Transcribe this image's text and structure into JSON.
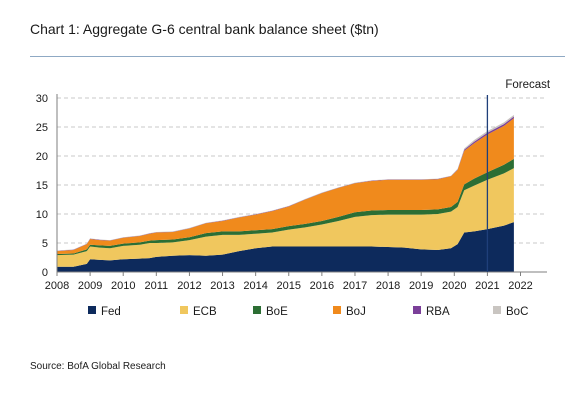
{
  "header": {
    "title": "Chart 1: Aggregate G-6 central bank balance sheet ($tn)"
  },
  "footer": {
    "source": "Source: BofA Global Research"
  },
  "chart_data": {
    "type": "area",
    "stacked": true,
    "title": "Chart 1: Aggregate G-6 central bank balance sheet ($tn)",
    "xlabel": "",
    "ylabel": "",
    "xlim": [
      2008,
      2022.8
    ],
    "ylim": [
      0,
      30
    ],
    "x_ticks": [
      "2008",
      "2009",
      "2010",
      "2011",
      "2012",
      "2013",
      "2014",
      "2015",
      "2016",
      "2017",
      "2018",
      "2019",
      "2020",
      "2021",
      "2022"
    ],
    "y_ticks": [
      "0",
      "5",
      "10",
      "15",
      "20",
      "25",
      "30"
    ],
    "grid": "horizontal dashed",
    "legend_position": "bottom",
    "annotation": {
      "label": "Forecast",
      "x": 2021
    },
    "x": [
      2008.0,
      2008.5,
      2008.9,
      2009.0,
      2009.3,
      2009.6,
      2010.0,
      2010.5,
      2010.8,
      2011.0,
      2011.5,
      2012.0,
      2012.5,
      2013.0,
      2013.5,
      2014.0,
      2014.5,
      2015.0,
      2015.5,
      2016.0,
      2016.5,
      2017.0,
      2017.5,
      2018.0,
      2018.5,
      2019.0,
      2019.5,
      2019.9,
      2020.1,
      2020.3,
      2020.6,
      2021.0,
      2021.5,
      2021.8
    ],
    "series": [
      {
        "name": "Fed",
        "color": "#0d2a5c",
        "values": [
          0.9,
          0.9,
          1.4,
          2.2,
          2.1,
          2.0,
          2.2,
          2.3,
          2.4,
          2.6,
          2.8,
          2.9,
          2.8,
          3.0,
          3.6,
          4.1,
          4.4,
          4.4,
          4.4,
          4.4,
          4.4,
          4.4,
          4.4,
          4.3,
          4.2,
          3.9,
          3.8,
          4.1,
          4.8,
          6.8,
          7.0,
          7.4,
          8.0,
          8.6
        ]
      },
      {
        "name": "ECB",
        "color": "#f0c75e",
        "values": [
          2.0,
          2.1,
          2.2,
          2.2,
          2.1,
          2.1,
          2.3,
          2.4,
          2.6,
          2.4,
          2.3,
          2.6,
          3.3,
          3.4,
          2.8,
          2.5,
          2.4,
          2.9,
          3.3,
          3.8,
          4.4,
          5.1,
          5.4,
          5.6,
          5.7,
          6.0,
          6.2,
          6.3,
          6.4,
          7.3,
          7.9,
          8.5,
          9.0,
          9.3
        ]
      },
      {
        "name": "BoE",
        "color": "#2c6e34",
        "values": [
          0.2,
          0.2,
          0.3,
          0.3,
          0.4,
          0.4,
          0.4,
          0.4,
          0.4,
          0.5,
          0.5,
          0.5,
          0.6,
          0.6,
          0.6,
          0.6,
          0.6,
          0.6,
          0.6,
          0.6,
          0.7,
          0.8,
          0.8,
          0.8,
          0.8,
          0.8,
          0.8,
          0.8,
          0.9,
          1.0,
          1.2,
          1.3,
          1.5,
          1.6
        ]
      },
      {
        "name": "BoJ",
        "color": "#f08a1c",
        "values": [
          0.5,
          0.6,
          0.9,
          1.0,
          0.9,
          0.9,
          1.0,
          1.1,
          1.2,
          1.3,
          1.3,
          1.5,
          1.7,
          1.8,
          2.4,
          2.7,
          3.1,
          3.4,
          4.2,
          4.8,
          5.0,
          5.0,
          5.1,
          5.2,
          5.2,
          5.2,
          5.2,
          5.3,
          5.5,
          5.8,
          6.1,
          6.5,
          6.7,
          7.0
        ]
      },
      {
        "name": "RBA",
        "color": "#7b3f99",
        "values": [
          0.05,
          0.05,
          0.05,
          0.05,
          0.05,
          0.05,
          0.05,
          0.05,
          0.05,
          0.05,
          0.05,
          0.05,
          0.05,
          0.05,
          0.05,
          0.05,
          0.05,
          0.05,
          0.05,
          0.05,
          0.05,
          0.05,
          0.05,
          0.05,
          0.05,
          0.05,
          0.05,
          0.05,
          0.1,
          0.2,
          0.25,
          0.3,
          0.3,
          0.3
        ]
      },
      {
        "name": "BoC",
        "color": "#c9c5c1",
        "values": [
          0.05,
          0.05,
          0.05,
          0.05,
          0.05,
          0.05,
          0.05,
          0.05,
          0.05,
          0.05,
          0.05,
          0.05,
          0.05,
          0.05,
          0.05,
          0.05,
          0.05,
          0.05,
          0.05,
          0.05,
          0.05,
          0.05,
          0.05,
          0.05,
          0.05,
          0.05,
          0.05,
          0.05,
          0.1,
          0.2,
          0.3,
          0.3,
          0.3,
          0.3
        ]
      }
    ]
  }
}
